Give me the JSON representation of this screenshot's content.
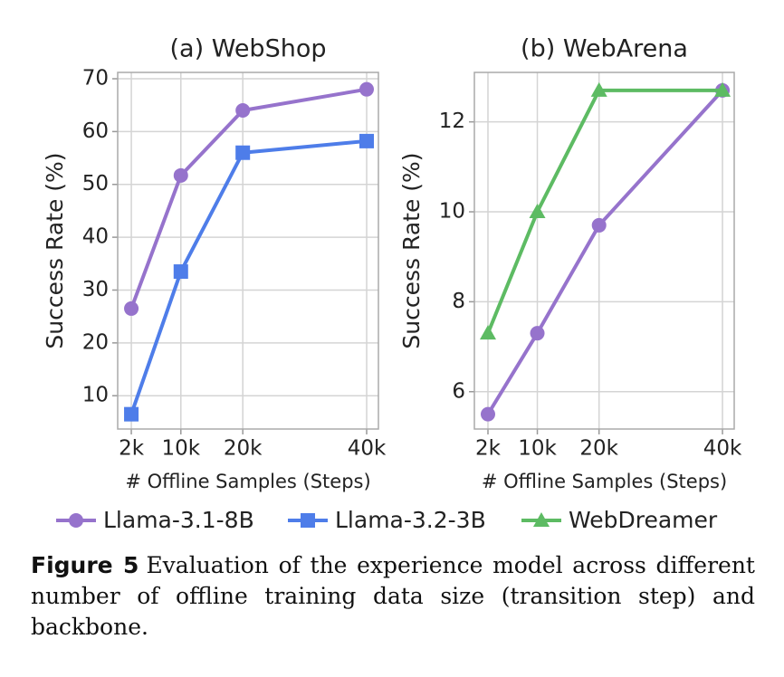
{
  "chart_data": [
    {
      "type": "line",
      "title": "(a) WebShop",
      "xlabel": "# Offline Samples (Steps)",
      "ylabel": "Success Rate (%)",
      "x": [
        2,
        10,
        20,
        40
      ],
      "xlim": [
        -0.2,
        41.9
      ],
      "xticks": [
        {
          "value": 2,
          "label": "2k"
        },
        {
          "value": 10,
          "label": "10k"
        },
        {
          "value": 20,
          "label": "20k"
        },
        {
          "value": 40,
          "label": "40k"
        }
      ],
      "ylim": [
        3.7,
        71.2
      ],
      "yticks": [
        10,
        20,
        30,
        40,
        50,
        60,
        70
      ],
      "grid": true,
      "series": [
        {
          "name": "Llama-3.1-8B",
          "color": "#9673cc",
          "marker": "circle",
          "values": [
            26.5,
            51.7,
            64,
            68
          ]
        },
        {
          "name": "Llama-3.2-3B",
          "color": "#4e7de9",
          "marker": "square",
          "values": [
            6.5,
            33.5,
            56,
            58.2
          ]
        }
      ]
    },
    {
      "type": "line",
      "title": "(b) WebArena",
      "xlabel": "# Offline Samples (Steps)",
      "ylabel": "Success Rate (%)",
      "x": [
        2,
        10,
        20,
        40
      ],
      "xlim": [
        -0.2,
        41.9
      ],
      "xticks": [
        {
          "value": 2,
          "label": "2k"
        },
        {
          "value": 10,
          "label": "10k"
        },
        {
          "value": 20,
          "label": "20k"
        },
        {
          "value": 40,
          "label": "40k"
        }
      ],
      "ylim": [
        5.17,
        13.1
      ],
      "yticks": [
        6,
        8,
        10,
        12
      ],
      "grid": true,
      "series": [
        {
          "name": "Llama-3.1-8B",
          "color": "#9673cc",
          "marker": "circle",
          "values": [
            5.5,
            7.3,
            9.7,
            12.7
          ]
        },
        {
          "name": "WebDreamer",
          "color": "#5dbb63",
          "marker": "triangle",
          "values": [
            7.3,
            10.0,
            12.7,
            12.7
          ]
        }
      ]
    }
  ],
  "caption": {
    "label": "Figure 5",
    "text": "Evaluation of the experience model across different number of offline training data size (transition step) and backbone."
  }
}
